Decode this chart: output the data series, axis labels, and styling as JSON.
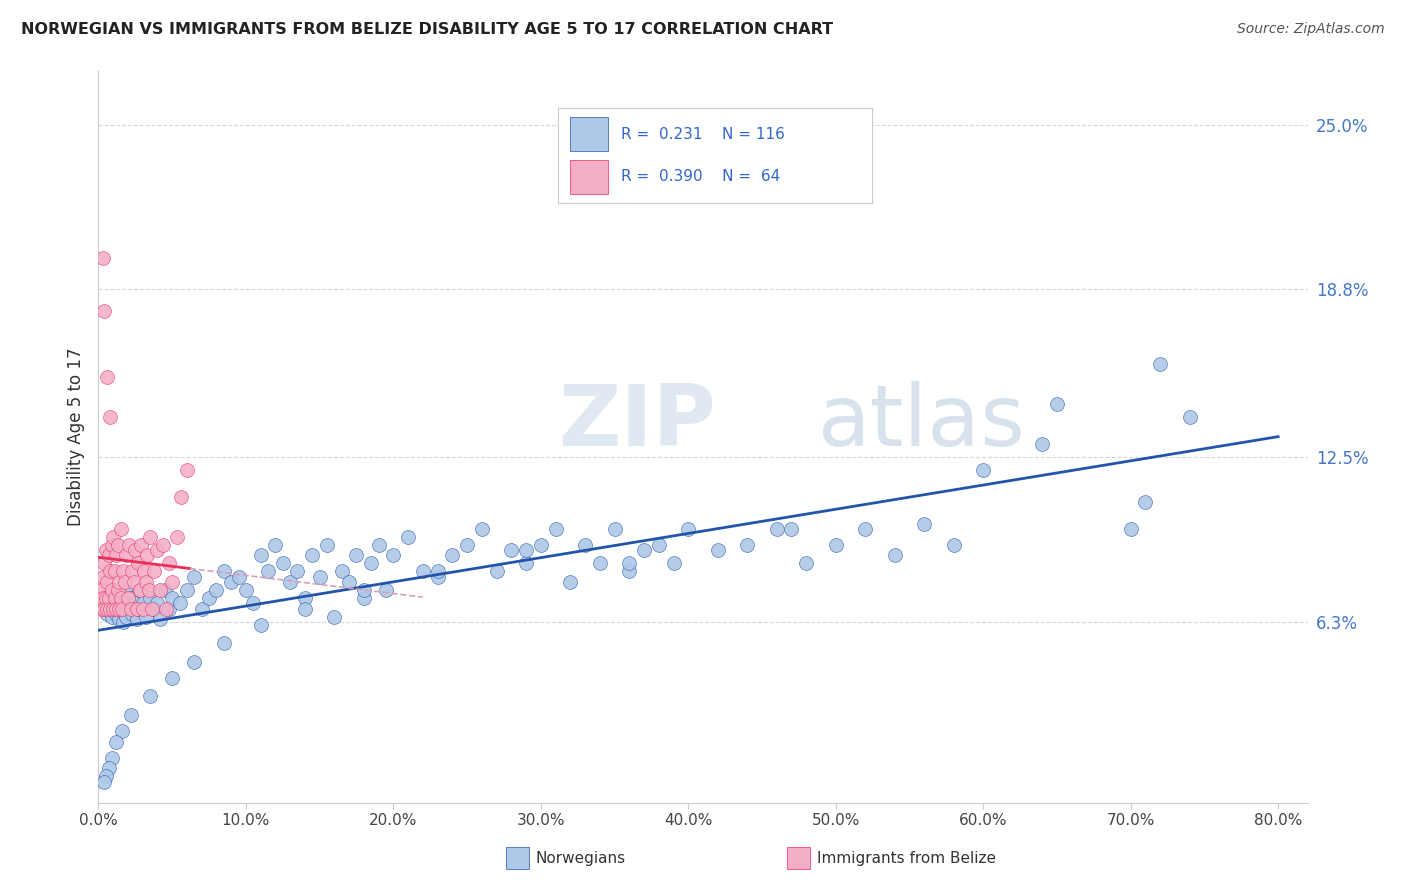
{
  "title": "NORWEGIAN VS IMMIGRANTS FROM BELIZE DISABILITY AGE 5 TO 17 CORRELATION CHART",
  "source": "Source: ZipAtlas.com",
  "ylabel": "Disability Age 5 to 17",
  "xlabel_ticks": [
    "0.0%",
    "10.0%",
    "20.0%",
    "30.0%",
    "40.0%",
    "50.0%",
    "60.0%",
    "70.0%",
    "80.0%"
  ],
  "xlim": [
    0.0,
    0.82
  ],
  "ylim": [
    -0.005,
    0.27
  ],
  "ytick_vals": [
    0.063,
    0.125,
    0.188,
    0.25
  ],
  "ytick_labels": [
    "6.3%",
    "12.5%",
    "18.8%",
    "25.0%"
  ],
  "norwegian_color": "#aec8e8",
  "belize_color": "#f4afc8",
  "trend_norwegian_color": "#2255aa",
  "trend_belize_color": "#e8305a",
  "trend_belize_dashed_color": "#d8a0b8",
  "R_norwegian": 0.231,
  "N_norwegian": 116,
  "R_belize": 0.39,
  "N_belize": 64,
  "watermark_zip": "ZIP",
  "watermark_atlas": "atlas",
  "background_color": "#ffffff",
  "grid_color": "#d8d8d8",
  "norwegian_x": [
    0.003,
    0.005,
    0.006,
    0.008,
    0.009,
    0.01,
    0.011,
    0.012,
    0.013,
    0.014,
    0.015,
    0.016,
    0.017,
    0.018,
    0.019,
    0.02,
    0.021,
    0.022,
    0.023,
    0.025,
    0.026,
    0.027,
    0.028,
    0.03,
    0.032,
    0.035,
    0.038,
    0.04,
    0.042,
    0.045,
    0.048,
    0.05,
    0.055,
    0.06,
    0.065,
    0.07,
    0.075,
    0.08,
    0.085,
    0.09,
    0.095,
    0.1,
    0.105,
    0.11,
    0.115,
    0.12,
    0.125,
    0.13,
    0.135,
    0.14,
    0.145,
    0.15,
    0.155,
    0.16,
    0.165,
    0.17,
    0.175,
    0.18,
    0.185,
    0.19,
    0.195,
    0.2,
    0.21,
    0.22,
    0.23,
    0.24,
    0.25,
    0.26,
    0.27,
    0.28,
    0.29,
    0.3,
    0.31,
    0.32,
    0.33,
    0.34,
    0.35,
    0.36,
    0.37,
    0.38,
    0.39,
    0.4,
    0.42,
    0.44,
    0.46,
    0.48,
    0.5,
    0.52,
    0.54,
    0.56,
    0.58,
    0.6,
    0.65,
    0.7,
    0.71,
    0.74,
    0.72,
    0.64,
    0.47,
    0.36,
    0.29,
    0.23,
    0.18,
    0.14,
    0.11,
    0.085,
    0.065,
    0.05,
    0.035,
    0.022,
    0.016,
    0.012,
    0.009,
    0.007,
    0.005,
    0.004
  ],
  "norwegian_y": [
    0.068,
    0.07,
    0.066,
    0.072,
    0.065,
    0.075,
    0.068,
    0.066,
    0.072,
    0.064,
    0.07,
    0.068,
    0.063,
    0.075,
    0.065,
    0.07,
    0.068,
    0.072,
    0.066,
    0.07,
    0.064,
    0.068,
    0.075,
    0.07,
    0.065,
    0.072,
    0.068,
    0.07,
    0.064,
    0.075,
    0.068,
    0.072,
    0.07,
    0.075,
    0.08,
    0.068,
    0.072,
    0.075,
    0.082,
    0.078,
    0.08,
    0.075,
    0.07,
    0.088,
    0.082,
    0.092,
    0.085,
    0.078,
    0.082,
    0.072,
    0.088,
    0.08,
    0.092,
    0.065,
    0.082,
    0.078,
    0.088,
    0.072,
    0.085,
    0.092,
    0.075,
    0.088,
    0.095,
    0.082,
    0.08,
    0.088,
    0.092,
    0.098,
    0.082,
    0.09,
    0.085,
    0.092,
    0.098,
    0.078,
    0.092,
    0.085,
    0.098,
    0.082,
    0.09,
    0.092,
    0.085,
    0.098,
    0.09,
    0.092,
    0.098,
    0.085,
    0.092,
    0.098,
    0.088,
    0.1,
    0.092,
    0.12,
    0.145,
    0.098,
    0.108,
    0.14,
    0.16,
    0.13,
    0.098,
    0.085,
    0.09,
    0.082,
    0.075,
    0.068,
    0.062,
    0.055,
    0.048,
    0.042,
    0.035,
    0.028,
    0.022,
    0.018,
    0.012,
    0.008,
    0.005,
    0.003
  ],
  "belize_x": [
    0.001,
    0.002,
    0.002,
    0.003,
    0.003,
    0.004,
    0.004,
    0.005,
    0.005,
    0.006,
    0.006,
    0.007,
    0.007,
    0.008,
    0.008,
    0.009,
    0.009,
    0.01,
    0.01,
    0.011,
    0.011,
    0.012,
    0.012,
    0.013,
    0.013,
    0.014,
    0.014,
    0.015,
    0.015,
    0.016,
    0.017,
    0.018,
    0.019,
    0.02,
    0.021,
    0.022,
    0.023,
    0.024,
    0.025,
    0.026,
    0.027,
    0.028,
    0.029,
    0.03,
    0.031,
    0.032,
    0.033,
    0.034,
    0.035,
    0.036,
    0.038,
    0.04,
    0.042,
    0.044,
    0.046,
    0.048,
    0.05,
    0.053,
    0.056,
    0.06,
    0.003,
    0.004,
    0.006,
    0.008
  ],
  "belize_y": [
    0.07,
    0.068,
    0.075,
    0.072,
    0.08,
    0.068,
    0.085,
    0.072,
    0.09,
    0.068,
    0.078,
    0.072,
    0.088,
    0.068,
    0.082,
    0.075,
    0.092,
    0.068,
    0.095,
    0.072,
    0.082,
    0.068,
    0.088,
    0.075,
    0.092,
    0.068,
    0.078,
    0.072,
    0.098,
    0.068,
    0.082,
    0.078,
    0.088,
    0.072,
    0.092,
    0.068,
    0.082,
    0.078,
    0.09,
    0.068,
    0.085,
    0.075,
    0.092,
    0.068,
    0.082,
    0.078,
    0.088,
    0.075,
    0.095,
    0.068,
    0.082,
    0.09,
    0.075,
    0.092,
    0.068,
    0.085,
    0.078,
    0.095,
    0.11,
    0.12,
    0.2,
    0.18,
    0.155,
    0.14
  ]
}
